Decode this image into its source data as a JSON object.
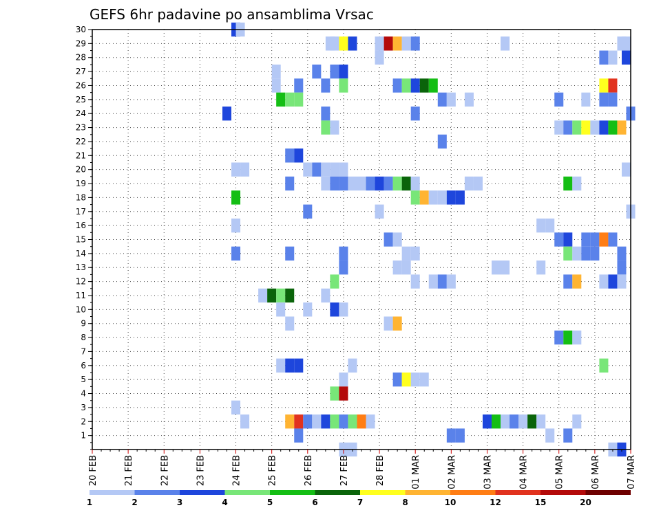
{
  "chart_data": {
    "type": "heatmap",
    "title": "GEFS 6hr padavine po ansamblima Vrsac",
    "xlabel": "",
    "ylabel": "",
    "x_range": [
      0,
      60
    ],
    "y_range": [
      0,
      30
    ],
    "x_unit": "6-hour step from 20 FEB 00Z",
    "y_tick_labels": [
      "1",
      "2",
      "3",
      "4",
      "5",
      "6",
      "7",
      "8",
      "9",
      "10",
      "11",
      "12",
      "13",
      "14",
      "15",
      "16",
      "17",
      "18",
      "19",
      "20",
      "21",
      "22",
      "23",
      "24",
      "25",
      "26",
      "27",
      "28",
      "29",
      "30"
    ],
    "x_tick_labels": [
      "20 FEB",
      "21 FEB",
      "22 FEB",
      "23 FEB",
      "24 FEB",
      "25 FEB",
      "26 FEB",
      "27 FEB",
      "28 FEB",
      "01 MAR",
      "02 MAR",
      "03 MAR",
      "04 MAR",
      "05 MAR",
      "06 MAR",
      "07 MAR"
    ],
    "legend": {
      "position": "bottom",
      "labels": [
        "1",
        "2",
        "3",
        "4",
        "5",
        "6",
        "7",
        "8",
        "10",
        "12",
        "15",
        "20"
      ],
      "colors": [
        "#b4c8f5",
        "#5a82ea",
        "#1e46dc",
        "#78e678",
        "#14be14",
        "#0a640a",
        "#ffff1e",
        "#ffb432",
        "#ff7d14",
        "#e1321e",
        "#b40a0a",
        "#6e0000"
      ]
    },
    "grid": true,
    "cells": [
      [
        16.0,
        30,
        2
      ],
      [
        16.5,
        30,
        0
      ],
      [
        26.5,
        29,
        0
      ],
      [
        27.0,
        29,
        0
      ],
      [
        28.0,
        29,
        6
      ],
      [
        29.0,
        29,
        2
      ],
      [
        32.0,
        29,
        0
      ],
      [
        33.0,
        29,
        10
      ],
      [
        34.0,
        29,
        7
      ],
      [
        35.0,
        29,
        0
      ],
      [
        36.0,
        29,
        1
      ],
      [
        46.0,
        29,
        0
      ],
      [
        59.0,
        29,
        0
      ],
      [
        59.5,
        29,
        0
      ],
      [
        32.0,
        28,
        0
      ],
      [
        57.0,
        28,
        1
      ],
      [
        58.0,
        28,
        0
      ],
      [
        59.5,
        28,
        2
      ],
      [
        20.5,
        27,
        0
      ],
      [
        25.0,
        27,
        1
      ],
      [
        27.0,
        27,
        1
      ],
      [
        28.0,
        27,
        2
      ],
      [
        20.5,
        26,
        0
      ],
      [
        23.0,
        26,
        1
      ],
      [
        26.0,
        26,
        1
      ],
      [
        28.0,
        26,
        3
      ],
      [
        34.0,
        26,
        1
      ],
      [
        35.0,
        26,
        3
      ],
      [
        36.0,
        26,
        2
      ],
      [
        37.0,
        26,
        5
      ],
      [
        38.0,
        26,
        4
      ],
      [
        57.0,
        26,
        6
      ],
      [
        58.0,
        26,
        9
      ],
      [
        21.0,
        25,
        4
      ],
      [
        22.0,
        25,
        3
      ],
      [
        23.0,
        25,
        3
      ],
      [
        39.0,
        25,
        1
      ],
      [
        40.0,
        25,
        0
      ],
      [
        42.0,
        25,
        0
      ],
      [
        52.0,
        25,
        1
      ],
      [
        55.0,
        25,
        0
      ],
      [
        57.0,
        25,
        1
      ],
      [
        58.0,
        25,
        1
      ],
      [
        15.0,
        24,
        2
      ],
      [
        26.0,
        24,
        1
      ],
      [
        36.0,
        24,
        1
      ],
      [
        60.0,
        24,
        1
      ],
      [
        26.0,
        23,
        3
      ],
      [
        27.0,
        23,
        0
      ],
      [
        52.0,
        23,
        0
      ],
      [
        53.0,
        23,
        1
      ],
      [
        54.0,
        23,
        3
      ],
      [
        55.0,
        23,
        6
      ],
      [
        56.0,
        23,
        0
      ],
      [
        57.0,
        23,
        2
      ],
      [
        58.0,
        23,
        4
      ],
      [
        59.0,
        23,
        7
      ],
      [
        39.0,
        22,
        1
      ],
      [
        22.0,
        21,
        1
      ],
      [
        23.0,
        21,
        2
      ],
      [
        16.0,
        20,
        0
      ],
      [
        17.0,
        20,
        0
      ],
      [
        24.0,
        20,
        0
      ],
      [
        25.0,
        20,
        1
      ],
      [
        26.0,
        20,
        0
      ],
      [
        27.0,
        20,
        0
      ],
      [
        28.0,
        20,
        0
      ],
      [
        59.5,
        20,
        0
      ],
      [
        22.0,
        19,
        1
      ],
      [
        26.0,
        19,
        0
      ],
      [
        27.0,
        19,
        1
      ],
      [
        28.0,
        19,
        1
      ],
      [
        29.0,
        19,
        0
      ],
      [
        30.0,
        19,
        0
      ],
      [
        31.0,
        19,
        1
      ],
      [
        32.0,
        19,
        2
      ],
      [
        33.0,
        19,
        1
      ],
      [
        34.0,
        19,
        3
      ],
      [
        35.0,
        19,
        5
      ],
      [
        36.0,
        19,
        0
      ],
      [
        42.0,
        19,
        0
      ],
      [
        43.0,
        19,
        0
      ],
      [
        53.0,
        19,
        4
      ],
      [
        54.0,
        19,
        0
      ],
      [
        16.0,
        18,
        4
      ],
      [
        36.0,
        18,
        3
      ],
      [
        37.0,
        18,
        7
      ],
      [
        38.0,
        18,
        0
      ],
      [
        39.0,
        18,
        0
      ],
      [
        40.0,
        18,
        2
      ],
      [
        41.0,
        18,
        2
      ],
      [
        32.0,
        17,
        0
      ],
      [
        60.0,
        17,
        0
      ],
      [
        24.0,
        17,
        1
      ],
      [
        16.0,
        16,
        0
      ],
      [
        50.0,
        16,
        0
      ],
      [
        51.0,
        16,
        0
      ],
      [
        33.0,
        15,
        1
      ],
      [
        34.0,
        15,
        0
      ],
      [
        52.0,
        15,
        1
      ],
      [
        53.0,
        15,
        2
      ],
      [
        55.0,
        15,
        1
      ],
      [
        56.0,
        15,
        1
      ],
      [
        57.0,
        15,
        8
      ],
      [
        58.0,
        15,
        1
      ],
      [
        16.0,
        14,
        1
      ],
      [
        22.0,
        14,
        1
      ],
      [
        28.0,
        14,
        1
      ],
      [
        35.0,
        14,
        0
      ],
      [
        36.0,
        14,
        0
      ],
      [
        53.0,
        14,
        3
      ],
      [
        54.0,
        14,
        0
      ],
      [
        55.0,
        14,
        1
      ],
      [
        56.0,
        14,
        1
      ],
      [
        59.0,
        14,
        1
      ],
      [
        28.0,
        13,
        1
      ],
      [
        34.0,
        13,
        0
      ],
      [
        35.0,
        13,
        0
      ],
      [
        45.0,
        13,
        0
      ],
      [
        46.0,
        13,
        0
      ],
      [
        50.0,
        13,
        0
      ],
      [
        59.0,
        13,
        1
      ],
      [
        27.0,
        12,
        3
      ],
      [
        36.0,
        12,
        0
      ],
      [
        38.0,
        12,
        0
      ],
      [
        39.0,
        12,
        1
      ],
      [
        40.0,
        12,
        0
      ],
      [
        53.0,
        12,
        1
      ],
      [
        54.0,
        12,
        7
      ],
      [
        57.0,
        12,
        0
      ],
      [
        58.0,
        12,
        2
      ],
      [
        59.0,
        12,
        0
      ],
      [
        19.0,
        11,
        0
      ],
      [
        20.0,
        11,
        5
      ],
      [
        21.0,
        11,
        3
      ],
      [
        22.0,
        11,
        5
      ],
      [
        26.0,
        11,
        0
      ],
      [
        21.0,
        10,
        0
      ],
      [
        24.0,
        10,
        0
      ],
      [
        27.0,
        10,
        2
      ],
      [
        28.0,
        10,
        0
      ],
      [
        22.0,
        9,
        0
      ],
      [
        33.0,
        9,
        0
      ],
      [
        34.0,
        9,
        7
      ],
      [
        52.0,
        8,
        1
      ],
      [
        53.0,
        8,
        4
      ],
      [
        54.0,
        8,
        0
      ],
      [
        21.0,
        6,
        0
      ],
      [
        22.0,
        6,
        2
      ],
      [
        23.0,
        6,
        2
      ],
      [
        29.0,
        6,
        0
      ],
      [
        57.0,
        6,
        3
      ],
      [
        28.0,
        5,
        0
      ],
      [
        34.0,
        5,
        1
      ],
      [
        35.0,
        5,
        6
      ],
      [
        36.0,
        5,
        0
      ],
      [
        37.0,
        5,
        0
      ],
      [
        27.0,
        4,
        3
      ],
      [
        28.0,
        4,
        10
      ],
      [
        16.0,
        3,
        0
      ],
      [
        17.0,
        2,
        0
      ],
      [
        22.0,
        2,
        7
      ],
      [
        23.0,
        2,
        9
      ],
      [
        24.0,
        2,
        1
      ],
      [
        25.0,
        2,
        0
      ],
      [
        26.0,
        2,
        2
      ],
      [
        27.0,
        2,
        3
      ],
      [
        28.0,
        2,
        1
      ],
      [
        29.0,
        2,
        3
      ],
      [
        30.0,
        2,
        8
      ],
      [
        31.0,
        2,
        0
      ],
      [
        44.0,
        2,
        2
      ],
      [
        45.0,
        2,
        4
      ],
      [
        46.0,
        2,
        0
      ],
      [
        47.0,
        2,
        1
      ],
      [
        48.0,
        2,
        0
      ],
      [
        49.0,
        2,
        5
      ],
      [
        50.0,
        2,
        0
      ],
      [
        54.0,
        2,
        0
      ],
      [
        23.0,
        1,
        1
      ],
      [
        40.0,
        1,
        1
      ],
      [
        41.0,
        1,
        1
      ],
      [
        51.0,
        1,
        0
      ],
      [
        53.0,
        1,
        1
      ],
      [
        28.0,
        0,
        0
      ],
      [
        29.0,
        0,
        0
      ],
      [
        58.0,
        0,
        0
      ],
      [
        59.0,
        0,
        2
      ]
    ]
  }
}
